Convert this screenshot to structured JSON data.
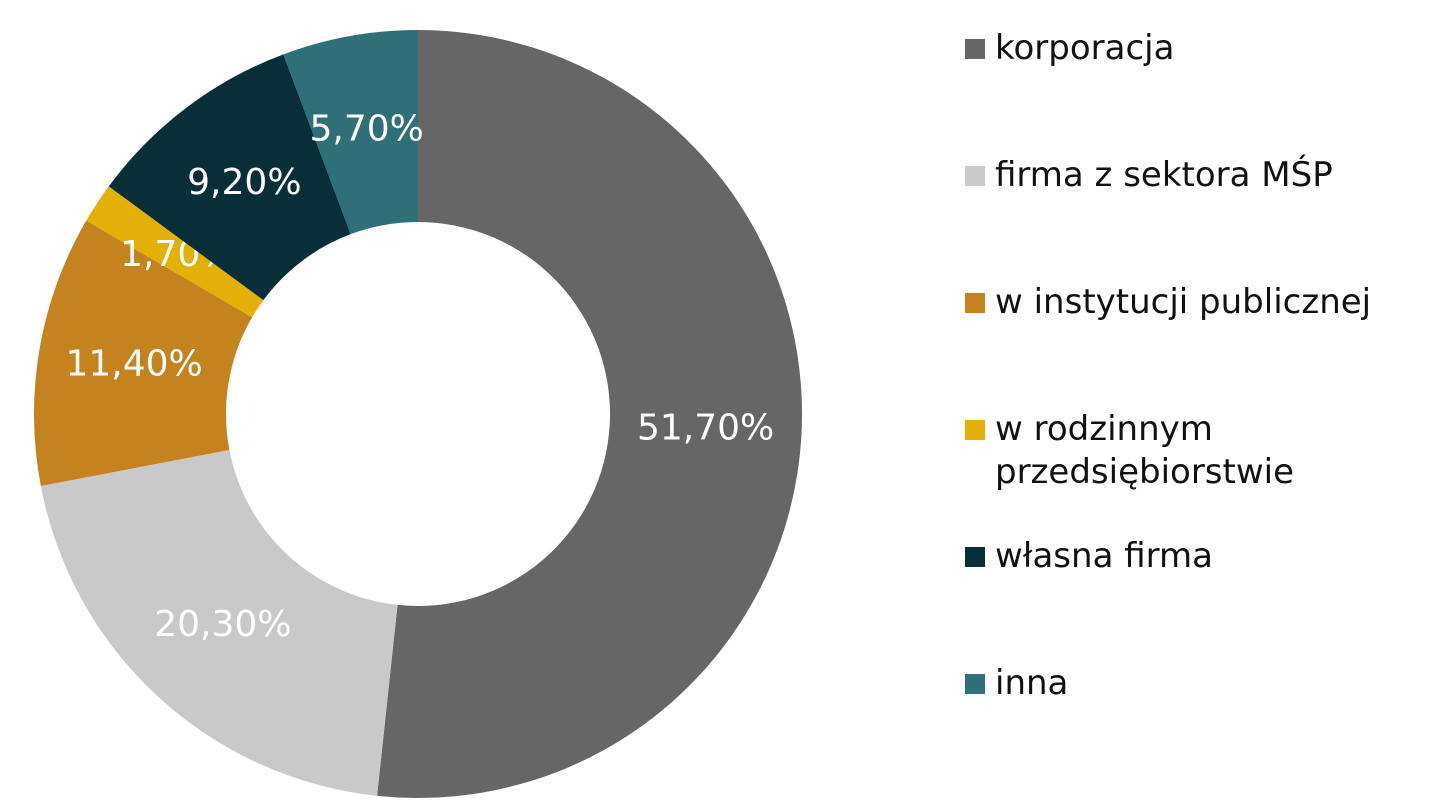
{
  "chart_data": {
    "type": "donut",
    "categories": [
      "korporacja",
      "firma z sektora MŚP",
      "w instytucji publicznej",
      "w rodzinnym przedsiębiorstwie",
      "własna firma",
      "inna"
    ],
    "values": [
      51.7,
      20.3,
      11.4,
      1.7,
      9.2,
      5.7
    ],
    "value_labels": [
      "51,70%",
      "20,30%",
      "11,40%",
      "1,70%",
      "9,20%",
      "5,70%"
    ],
    "colors": [
      "#666666",
      "#c9c9c9",
      "#c58320",
      "#e2b007",
      "#082f37",
      "#2e6f78"
    ],
    "legend": "right"
  }
}
